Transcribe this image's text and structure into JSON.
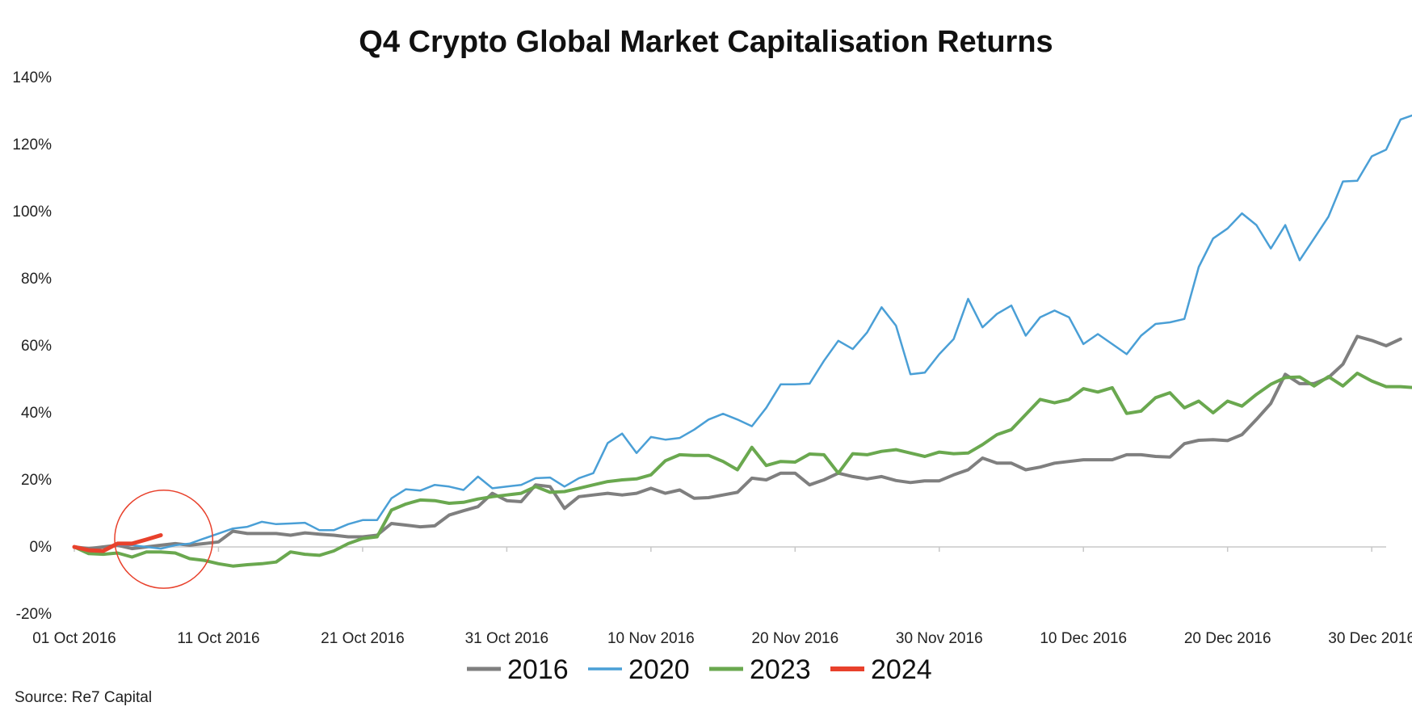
{
  "chart_data": {
    "type": "line",
    "title": "Q4 Crypto Global Market Capitalisation Returns",
    "xlabel": "",
    "ylabel": "",
    "ylim": [
      -20,
      140
    ],
    "yticks": [
      -20,
      0,
      20,
      40,
      60,
      80,
      100,
      120,
      140
    ],
    "ytick_labels": [
      "-20%",
      "0%",
      "20%",
      "40%",
      "60%",
      "80%",
      "100%",
      "120%",
      "140%"
    ],
    "x_range_days": [
      0,
      91
    ],
    "xticks": [
      0,
      10,
      20,
      30,
      40,
      50,
      60,
      70,
      80,
      90
    ],
    "xtick_labels": [
      "01 Oct 2016",
      "11 Oct 2016",
      "21 Oct 2016",
      "31 Oct 2016",
      "10 Nov 2016",
      "20 Nov 2016",
      "30 Nov 2016",
      "10 Dec 2016",
      "20 Dec 2016",
      "30 Dec 2016"
    ],
    "legend_position": "bottom",
    "source": "Source: Re7 Capital",
    "annotation": {
      "type": "circle",
      "label": "",
      "center_day": 6.2,
      "center_value": 2.3,
      "radius_days": 3.4,
      "color": "#e8412c"
    },
    "series": [
      {
        "name": "2016",
        "color": "#7f7f7f",
        "width": 4,
        "values": [
          0,
          -0.5,
          0,
          0.5,
          -0.5,
          0,
          0.5,
          1,
          0.5,
          1,
          1.5,
          4.7,
          4,
          4,
          4,
          3.5,
          4.2,
          3.8,
          3.5,
          3,
          3,
          3.5,
          7,
          6.5,
          6,
          6.3,
          9.5,
          10.8,
          12,
          16,
          13.8,
          13.5,
          18.5,
          18,
          11.5,
          15,
          15.5,
          16,
          15.5,
          16,
          17.5,
          16,
          17,
          14.5,
          14.7,
          15.5,
          16.3,
          20.5,
          20,
          22,
          22,
          18.5,
          20,
          22,
          21,
          20.3,
          21,
          19.8,
          19.2,
          19.7,
          19.7,
          21.5,
          23,
          26.5,
          25,
          25,
          23,
          23.8,
          25,
          25.5,
          26,
          26,
          26,
          27.5,
          27.5,
          27,
          26.8,
          30.8,
          31.8,
          32,
          31.7,
          33.5,
          38,
          42.8,
          51.5,
          48.7,
          48.7,
          50.5,
          54.5,
          62.8,
          61.6,
          60,
          62
        ]
      },
      {
        "name": "2020",
        "color": "#4a9fd6",
        "width": 2.5,
        "values": [
          0,
          -1,
          -1,
          0.5,
          0.5,
          0,
          -0.5,
          0.5,
          1,
          2.5,
          4,
          5.5,
          6,
          7.5,
          6.8,
          7,
          7.2,
          5,
          5,
          6.8,
          8,
          8,
          14.5,
          17.2,
          16.8,
          18.5,
          18,
          17,
          21,
          17.5,
          18,
          18.5,
          20.5,
          20.7,
          18,
          20.5,
          22,
          31,
          33.8,
          28,
          32.8,
          32,
          32.5,
          35,
          38,
          39.7,
          38,
          36,
          41.5,
          48.5,
          48.5,
          48.7,
          55.5,
          61.5,
          59,
          64,
          71.5,
          66,
          51.5,
          52,
          57.5,
          62,
          74,
          65.5,
          69.5,
          72,
          63,
          68.5,
          70.5,
          68.5,
          60.5,
          63.5,
          60.5,
          57.5,
          63,
          66.5,
          67,
          68,
          83.5,
          92,
          95,
          99.5,
          96,
          89,
          96,
          85.5,
          92,
          98.5,
          109,
          109.2,
          116.5,
          118.5,
          127.5,
          129
        ]
      },
      {
        "name": "2023",
        "color": "#6aa84f",
        "width": 4,
        "values": [
          0,
          -2,
          -2.2,
          -1.8,
          -3,
          -1.5,
          -1.5,
          -1.8,
          -3.5,
          -4,
          -5,
          -5.7,
          -5.3,
          -5,
          -4.5,
          -1.5,
          -2.2,
          -2.5,
          -1.2,
          1,
          2.5,
          3,
          11,
          12.8,
          14,
          13.8,
          13,
          13.3,
          14.3,
          15,
          15.5,
          16,
          18,
          16.3,
          16.5,
          17.5,
          18.5,
          19.5,
          20,
          20.3,
          21.5,
          25.7,
          27.5,
          27.3,
          27.3,
          25.5,
          23,
          29.7,
          24.3,
          25.5,
          25.3,
          27.7,
          27.5,
          22,
          27.8,
          27.5,
          28.5,
          29,
          28,
          27,
          28.3,
          27.8,
          28,
          30.5,
          33.5,
          35,
          39.5,
          44,
          43,
          44,
          47.2,
          46.2,
          47.5,
          39.8,
          40.5,
          44.5,
          46,
          41.5,
          43.5,
          40,
          43.5,
          42,
          45.5,
          48.5,
          50.5,
          50.7,
          48,
          50.8,
          48,
          51.8,
          49.5,
          47.8,
          47.8,
          47.5
        ]
      },
      {
        "name": "2024",
        "color": "#e8412c",
        "width": 5,
        "values": [
          0,
          -1,
          -1.2,
          1,
          1,
          2.2,
          3.5
        ]
      }
    ]
  }
}
